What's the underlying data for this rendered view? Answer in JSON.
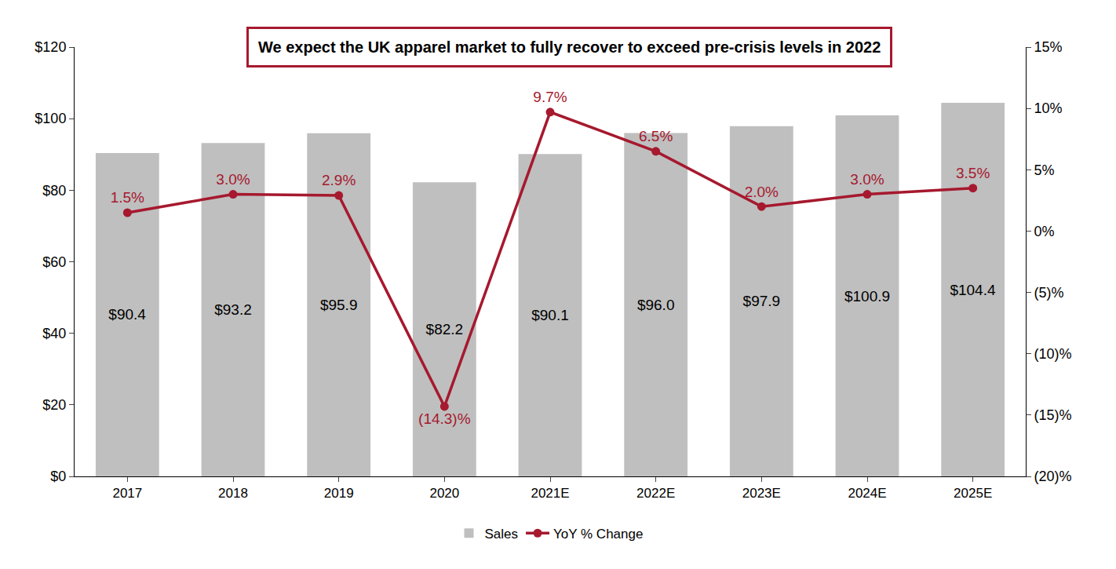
{
  "chart_data": {
    "type": "bar",
    "title": "We expect the UK apparel market to fully recover to exceed pre-crisis levels in 2022",
    "categories": [
      "2017",
      "2018",
      "2019",
      "2020",
      "2021E",
      "2022E",
      "2023E",
      "2024E",
      "2025E"
    ],
    "series": [
      {
        "name": "Sales",
        "type": "bar",
        "color": "#BFBFBF",
        "values": [
          90.4,
          93.2,
          95.9,
          82.2,
          90.1,
          96.0,
          97.9,
          100.9,
          104.4
        ],
        "value_labels": [
          "$90.4",
          "$93.2",
          "$95.9",
          "$82.2",
          "$90.1",
          "$96.0",
          "$97.9",
          "$100.9",
          "$104.4"
        ]
      },
      {
        "name": "YoY % Change",
        "type": "line",
        "axis": "y2",
        "color": "#A6192E",
        "marker": "circle",
        "values": [
          1.5,
          3.0,
          2.9,
          -14.3,
          9.7,
          6.5,
          2.0,
          3.0,
          3.5
        ],
        "value_labels": [
          "1.5%",
          "3.0%",
          "2.9%",
          "(14.3)%",
          "9.7%",
          "6.5%",
          "2.0%",
          "3.0%",
          "3.5%"
        ]
      }
    ],
    "ylim": [
      0,
      120
    ],
    "yticks": [
      {
        "value": 0,
        "label": "$0"
      },
      {
        "value": 20,
        "label": "$20"
      },
      {
        "value": 40,
        "label": "$40"
      },
      {
        "value": 60,
        "label": "$60"
      },
      {
        "value": 80,
        "label": "$80"
      },
      {
        "value": 100,
        "label": "$100"
      },
      {
        "value": 120,
        "label": "$120"
      }
    ],
    "y2lim": [
      -20,
      15
    ],
    "y2ticks": [
      {
        "value": -20,
        "label": "(20)%"
      },
      {
        "value": -15,
        "label": "(15)%"
      },
      {
        "value": -10,
        "label": "(10)%"
      },
      {
        "value": -5,
        "label": "(5)%"
      },
      {
        "value": 0,
        "label": "0%"
      },
      {
        "value": 5,
        "label": "5%"
      },
      {
        "value": 10,
        "label": "10%"
      },
      {
        "value": 15,
        "label": "15%"
      }
    ],
    "grid": false,
    "legend": "bottom",
    "data_labels": true
  }
}
